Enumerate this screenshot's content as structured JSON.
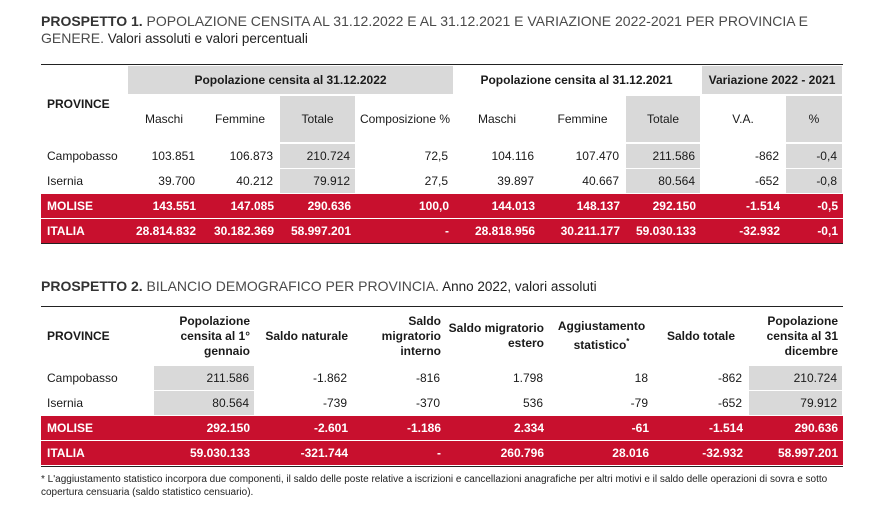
{
  "table1": {
    "title_bold": "PROSPETTO 1.",
    "title_caps": " POPOLAZIONE CENSITA AL 31.12.2022 E AL 31.12.2021 E VARIAZIONE 2022-2021 PER PROVINCIA E GENERE.",
    "title_rest": " Valori assoluti e valori percentuali",
    "group_2022": "Popolazione censita al 31.12.2022",
    "group_2021": "Popolazione censita al 31.12.2021",
    "group_var": "Variazione 2022 - 2021",
    "province_header": "PROVINCE",
    "columns": [
      "Maschi",
      "Femmine",
      "Totale",
      "Composizione %",
      "Maschi",
      "Femmine",
      "Totale",
      "V.A.",
      "%"
    ],
    "rows": [
      {
        "name": "Campobasso",
        "values": [
          "103.851",
          "106.873",
          "210.724",
          "72,5",
          "104.116",
          "107.470",
          "211.586",
          "-862",
          "-0,4"
        ]
      },
      {
        "name": "Isernia",
        "values": [
          "39.700",
          "40.212",
          "79.912",
          "27,5",
          "39.897",
          "40.667",
          "80.564",
          "-652",
          "-0,8"
        ]
      },
      {
        "name": "MOLISE",
        "values": [
          "143.551",
          "147.085",
          "290.636",
          "100,0",
          "144.013",
          "148.137",
          "292.150",
          "-1.514",
          "-0,5"
        ]
      },
      {
        "name": "ITALIA",
        "values": [
          "28.814.832",
          "30.182.369",
          "58.997.201",
          "-",
          "28.818.956",
          "30.211.177",
          "59.030.133",
          "-32.932",
          "-0,1"
        ]
      }
    ]
  },
  "table2": {
    "title_bold": "PROSPETTO 2.",
    "title_caps": " BILANCIO DEMOGRAFICO PER PROVINCIA.",
    "title_rest": " Anno 2022, valori assoluti",
    "province_header": "PROVINCE",
    "columns": [
      "Popolazione censita al 1° gennaio",
      "Saldo naturale",
      "Saldo migratorio interno",
      "Saldo migratorio estero",
      "Aggiustamento statistico",
      "Saldo totale",
      "Popolazione censita al 31 dicembre"
    ],
    "asterisk": "*",
    "rows": [
      {
        "name": "Campobasso",
        "values": [
          "211.586",
          "-1.862",
          "-816",
          "1.798",
          "18",
          "-862",
          "210.724"
        ]
      },
      {
        "name": "Isernia",
        "values": [
          "80.564",
          "-739",
          "-370",
          "536",
          "-79",
          "-652",
          "79.912"
        ]
      },
      {
        "name": "MOLISE",
        "values": [
          "292.150",
          "-2.601",
          "-1.186",
          "2.334",
          "-61",
          "-1.514",
          "290.636"
        ]
      },
      {
        "name": "ITALIA",
        "values": [
          "59.030.133",
          "-321.744",
          "-",
          "260.796",
          "28.016",
          "-32.932",
          "58.997.201"
        ]
      }
    ]
  },
  "footnote": "* L'aggiustamento statistico incorpora due componenti, il saldo delle poste relative a iscrizioni e cancellazioni anagrafiche per altri motivi e il saldo delle operazioni di sovra e sotto copertura censuaria (saldo statistico censuario).",
  "colors": {
    "accent_red": "#c8102e",
    "shade_gray": "#d9d9d9"
  }
}
